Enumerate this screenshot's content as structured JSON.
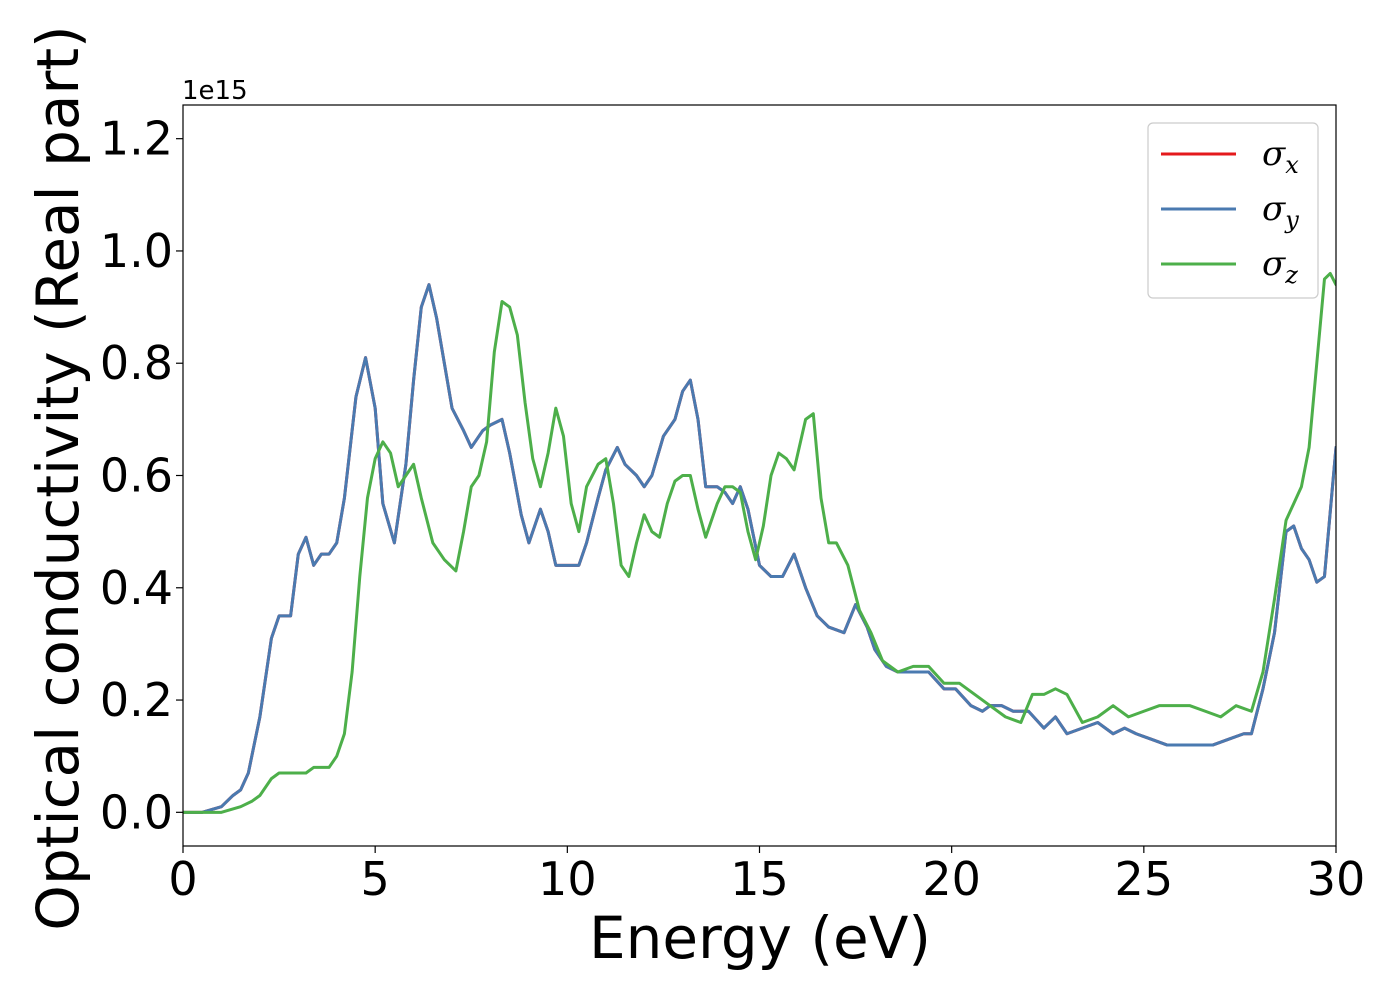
{
  "chart_data": {
    "type": "line",
    "xlabel": "Energy (eV)",
    "ylabel": "Optical conductivity (Real part)",
    "y_scale_offset": "1e15",
    "xlim": [
      0,
      30
    ],
    "ylim": [
      -0.06,
      1.26
    ],
    "x_ticks": [
      0,
      5,
      10,
      15,
      20,
      25,
      30
    ],
    "y_ticks": [
      0.0,
      0.2,
      0.4,
      0.6,
      0.8,
      1.0,
      1.2
    ],
    "x_tick_labels": [
      "0",
      "5",
      "10",
      "15",
      "20",
      "25",
      "30"
    ],
    "y_tick_labels": [
      "0.0",
      "0.2",
      "0.4",
      "0.6",
      "0.8",
      "1.0",
      "1.2"
    ],
    "grid": false,
    "legend_position": "top-right",
    "series": [
      {
        "name": "σx",
        "label_base": "σ",
        "label_sub": "x",
        "color": "#e41a1c",
        "x": [
          0,
          0.5,
          1,
          1.3,
          1.5,
          1.7,
          2,
          2.3,
          2.5,
          2.8,
          3,
          3.2,
          3.4,
          3.6,
          3.8,
          4,
          4.2,
          4.5,
          4.75,
          5,
          5.2,
          5.5,
          5.8,
          6,
          6.2,
          6.4,
          6.6,
          7,
          7.3,
          7.5,
          7.8,
          8,
          8.3,
          8.5,
          8.8,
          9,
          9.3,
          9.5,
          9.7,
          10,
          10.3,
          10.5,
          10.8,
          11,
          11.3,
          11.5,
          11.8,
          12,
          12.2,
          12.5,
          12.8,
          13,
          13.2,
          13.4,
          13.6,
          13.9,
          14.1,
          14.3,
          14.5,
          14.7,
          15,
          15.3,
          15.6,
          15.9,
          16.2,
          16.5,
          16.8,
          17.2,
          17.5,
          17.8,
          18,
          18.3,
          18.6,
          19,
          19.4,
          19.8,
          20.1,
          20.5,
          20.8,
          21,
          21.3,
          21.6,
          22,
          22.4,
          22.7,
          23,
          23.4,
          23.8,
          24.2,
          24.5,
          24.8,
          25.2,
          25.6,
          26,
          26.4,
          26.8,
          27.2,
          27.6,
          27.8,
          28.1,
          28.4,
          28.7,
          28.9,
          29.1,
          29.3,
          29.5,
          29.7,
          30
        ],
        "y": [
          0.0,
          0.0,
          0.01,
          0.03,
          0.04,
          0.07,
          0.17,
          0.31,
          0.35,
          0.35,
          0.46,
          0.49,
          0.44,
          0.46,
          0.46,
          0.48,
          0.56,
          0.74,
          0.81,
          0.72,
          0.55,
          0.48,
          0.62,
          0.77,
          0.9,
          0.94,
          0.88,
          0.72,
          0.68,
          0.65,
          0.68,
          0.69,
          0.7,
          0.64,
          0.53,
          0.48,
          0.54,
          0.5,
          0.44,
          0.44,
          0.44,
          0.48,
          0.56,
          0.61,
          0.65,
          0.62,
          0.6,
          0.58,
          0.6,
          0.67,
          0.7,
          0.75,
          0.77,
          0.7,
          0.58,
          0.58,
          0.57,
          0.55,
          0.58,
          0.54,
          0.44,
          0.42,
          0.42,
          0.46,
          0.4,
          0.35,
          0.33,
          0.32,
          0.37,
          0.33,
          0.29,
          0.26,
          0.25,
          0.25,
          0.25,
          0.22,
          0.22,
          0.19,
          0.18,
          0.19,
          0.19,
          0.18,
          0.18,
          0.15,
          0.17,
          0.14,
          0.15,
          0.16,
          0.14,
          0.15,
          0.14,
          0.13,
          0.12,
          0.12,
          0.12,
          0.12,
          0.13,
          0.14,
          0.14,
          0.22,
          0.32,
          0.5,
          0.51,
          0.47,
          0.45,
          0.41,
          0.42,
          0.65
        ]
      },
      {
        "name": "σy",
        "label_base": "σ",
        "label_sub": "y",
        "color": "#4a7ab0",
        "x": [
          0,
          0.5,
          1,
          1.3,
          1.5,
          1.7,
          2,
          2.3,
          2.5,
          2.8,
          3,
          3.2,
          3.4,
          3.6,
          3.8,
          4,
          4.2,
          4.5,
          4.75,
          5,
          5.2,
          5.5,
          5.8,
          6,
          6.2,
          6.4,
          6.6,
          7,
          7.3,
          7.5,
          7.8,
          8,
          8.3,
          8.5,
          8.8,
          9,
          9.3,
          9.5,
          9.7,
          10,
          10.3,
          10.5,
          10.8,
          11,
          11.3,
          11.5,
          11.8,
          12,
          12.2,
          12.5,
          12.8,
          13,
          13.2,
          13.4,
          13.6,
          13.9,
          14.1,
          14.3,
          14.5,
          14.7,
          15,
          15.3,
          15.6,
          15.9,
          16.2,
          16.5,
          16.8,
          17.2,
          17.5,
          17.8,
          18,
          18.3,
          18.6,
          19,
          19.4,
          19.8,
          20.1,
          20.5,
          20.8,
          21,
          21.3,
          21.6,
          22,
          22.4,
          22.7,
          23,
          23.4,
          23.8,
          24.2,
          24.5,
          24.8,
          25.2,
          25.6,
          26,
          26.4,
          26.8,
          27.2,
          27.6,
          27.8,
          28.1,
          28.4,
          28.7,
          28.9,
          29.1,
          29.3,
          29.5,
          29.7,
          30
        ],
        "y": [
          0.0,
          0.0,
          0.01,
          0.03,
          0.04,
          0.07,
          0.17,
          0.31,
          0.35,
          0.35,
          0.46,
          0.49,
          0.44,
          0.46,
          0.46,
          0.48,
          0.56,
          0.74,
          0.81,
          0.72,
          0.55,
          0.48,
          0.62,
          0.77,
          0.9,
          0.94,
          0.88,
          0.72,
          0.68,
          0.65,
          0.68,
          0.69,
          0.7,
          0.64,
          0.53,
          0.48,
          0.54,
          0.5,
          0.44,
          0.44,
          0.44,
          0.48,
          0.56,
          0.61,
          0.65,
          0.62,
          0.6,
          0.58,
          0.6,
          0.67,
          0.7,
          0.75,
          0.77,
          0.7,
          0.58,
          0.58,
          0.57,
          0.55,
          0.58,
          0.54,
          0.44,
          0.42,
          0.42,
          0.46,
          0.4,
          0.35,
          0.33,
          0.32,
          0.37,
          0.33,
          0.29,
          0.26,
          0.25,
          0.25,
          0.25,
          0.22,
          0.22,
          0.19,
          0.18,
          0.19,
          0.19,
          0.18,
          0.18,
          0.15,
          0.17,
          0.14,
          0.15,
          0.16,
          0.14,
          0.15,
          0.14,
          0.13,
          0.12,
          0.12,
          0.12,
          0.12,
          0.13,
          0.14,
          0.14,
          0.22,
          0.32,
          0.5,
          0.51,
          0.47,
          0.45,
          0.41,
          0.42,
          0.65
        ]
      },
      {
        "name": "σz",
        "label_base": "σ",
        "label_sub": "z",
        "color": "#4daf4a",
        "x": [
          0,
          0.5,
          1,
          1.5,
          1.8,
          2,
          2.3,
          2.5,
          2.8,
          3,
          3.2,
          3.4,
          3.6,
          3.8,
          4,
          4.2,
          4.4,
          4.6,
          4.8,
          5,
          5.2,
          5.4,
          5.6,
          5.8,
          6,
          6.2,
          6.5,
          6.8,
          7.1,
          7.3,
          7.5,
          7.7,
          7.9,
          8.1,
          8.3,
          8.5,
          8.7,
          8.9,
          9.1,
          9.3,
          9.5,
          9.7,
          9.9,
          10.1,
          10.3,
          10.5,
          10.8,
          11,
          11.2,
          11.4,
          11.6,
          11.8,
          12,
          12.2,
          12.4,
          12.6,
          12.8,
          13,
          13.2,
          13.4,
          13.6,
          13.9,
          14.1,
          14.3,
          14.5,
          14.7,
          14.9,
          15.1,
          15.3,
          15.5,
          15.7,
          15.9,
          16.2,
          16.4,
          16.6,
          16.8,
          17,
          17.3,
          17.6,
          17.9,
          18.2,
          18.6,
          19,
          19.4,
          19.8,
          20.2,
          20.6,
          21,
          21.4,
          21.8,
          22.1,
          22.4,
          22.7,
          23,
          23.4,
          23.8,
          24.2,
          24.6,
          25,
          25.4,
          25.8,
          26.2,
          26.6,
          27,
          27.4,
          27.8,
          28.1,
          28.4,
          28.7,
          28.9,
          29.1,
          29.3,
          29.5,
          29.7,
          29.85,
          30
        ],
        "y": [
          0.0,
          0.0,
          0.0,
          0.01,
          0.02,
          0.03,
          0.06,
          0.07,
          0.07,
          0.07,
          0.07,
          0.08,
          0.08,
          0.08,
          0.1,
          0.14,
          0.25,
          0.42,
          0.56,
          0.63,
          0.66,
          0.64,
          0.58,
          0.6,
          0.62,
          0.56,
          0.48,
          0.45,
          0.43,
          0.5,
          0.58,
          0.6,
          0.66,
          0.82,
          0.91,
          0.9,
          0.85,
          0.73,
          0.63,
          0.58,
          0.64,
          0.72,
          0.67,
          0.55,
          0.5,
          0.58,
          0.62,
          0.63,
          0.55,
          0.44,
          0.42,
          0.48,
          0.53,
          0.5,
          0.49,
          0.55,
          0.59,
          0.6,
          0.6,
          0.54,
          0.49,
          0.55,
          0.58,
          0.58,
          0.57,
          0.5,
          0.45,
          0.51,
          0.6,
          0.64,
          0.63,
          0.61,
          0.7,
          0.71,
          0.56,
          0.48,
          0.48,
          0.44,
          0.36,
          0.32,
          0.27,
          0.25,
          0.26,
          0.26,
          0.23,
          0.23,
          0.21,
          0.19,
          0.17,
          0.16,
          0.21,
          0.21,
          0.22,
          0.21,
          0.16,
          0.17,
          0.19,
          0.17,
          0.18,
          0.19,
          0.19,
          0.19,
          0.18,
          0.17,
          0.19,
          0.18,
          0.25,
          0.38,
          0.52,
          0.55,
          0.58,
          0.65,
          0.8,
          0.95,
          0.96,
          0.94
        ]
      }
    ]
  }
}
